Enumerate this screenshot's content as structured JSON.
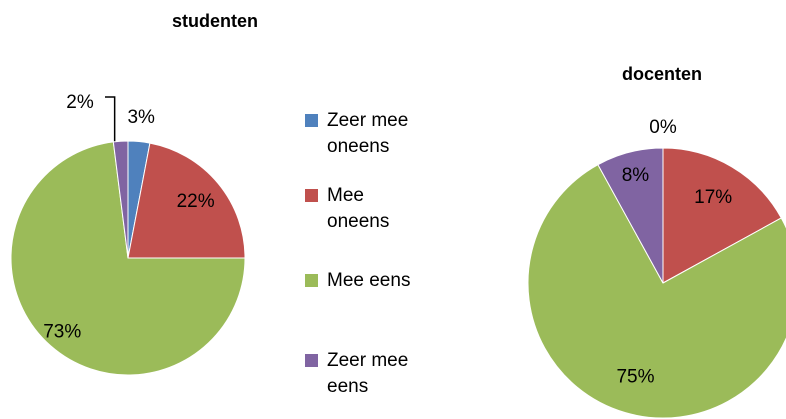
{
  "legend": {
    "categories": [
      "Zeer mee oneens",
      "Mee oneens",
      "Mee eens",
      "Zeer mee eens"
    ],
    "colors": [
      "#4f81bd",
      "#c0504d",
      "#9bbb59",
      "#8064a2"
    ]
  },
  "chart_data": [
    {
      "type": "pie",
      "title": "studenten",
      "values": [
        3,
        22,
        73,
        2
      ],
      "value_labels": [
        "3%",
        "22%",
        "73%",
        "2%"
      ]
    },
    {
      "type": "pie",
      "title": "docenten",
      "values": [
        0,
        17,
        75,
        8
      ],
      "value_labels": [
        "0%",
        "17%",
        "75%",
        "8%"
      ]
    }
  ]
}
